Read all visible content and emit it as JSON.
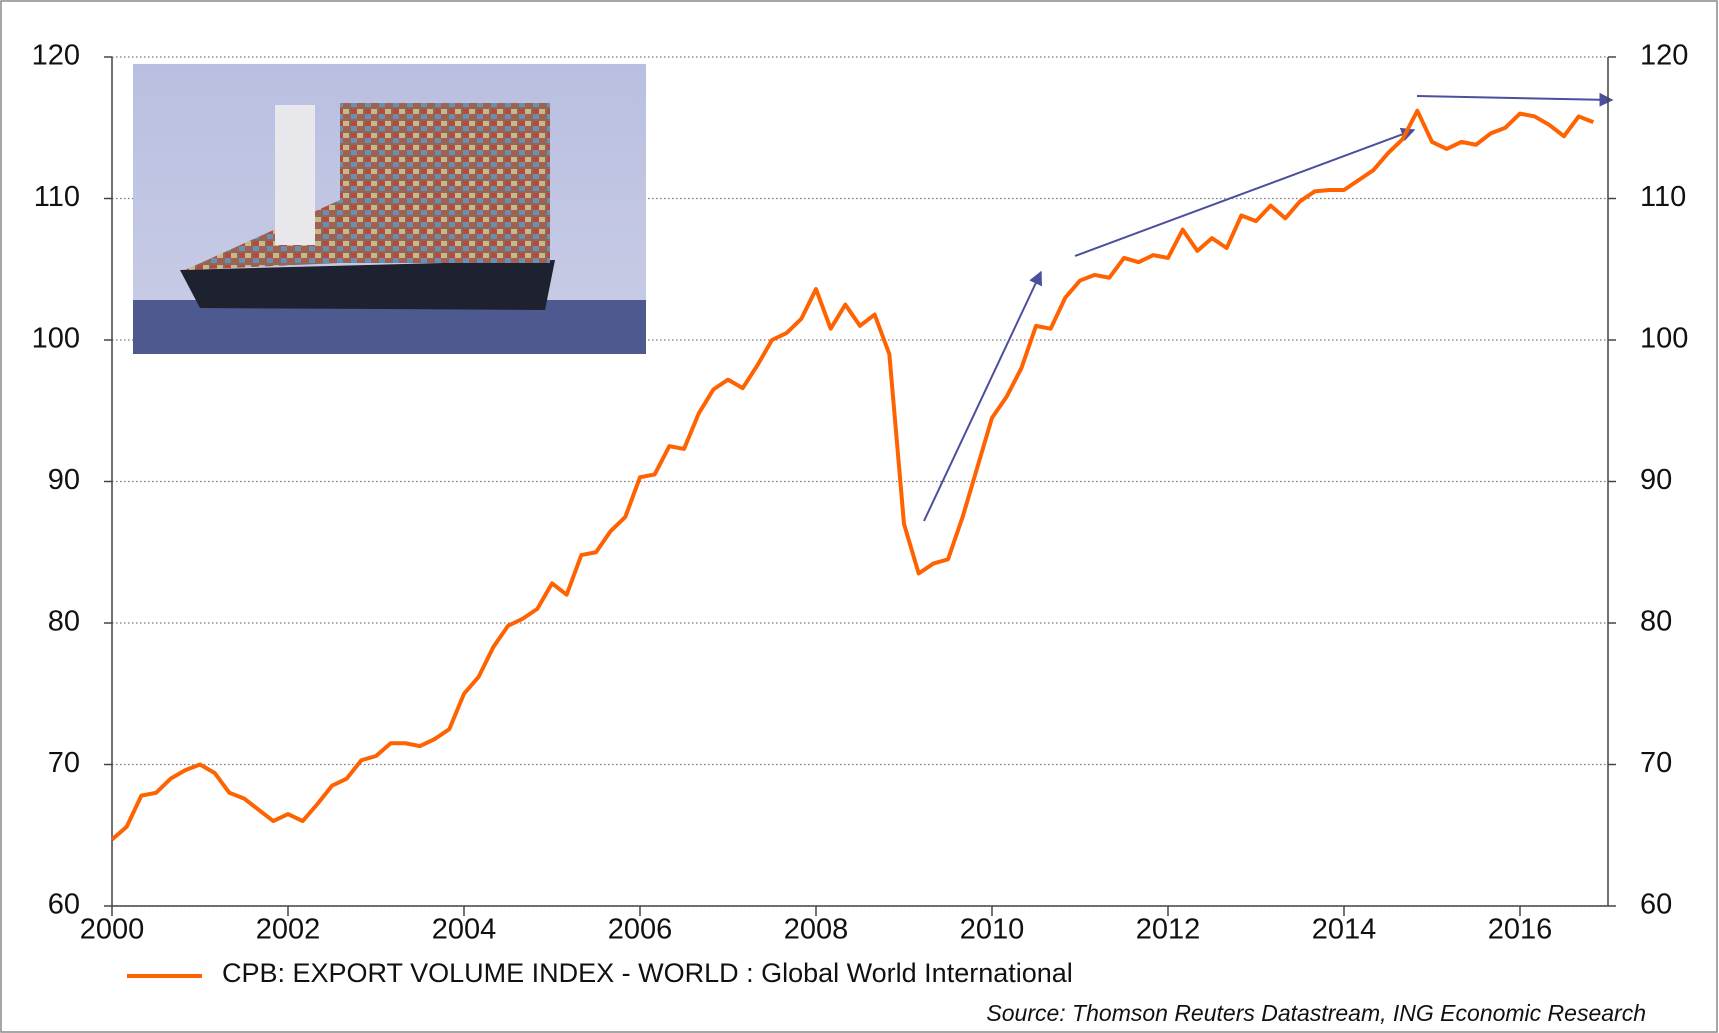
{
  "chart_data": {
    "type": "line",
    "x": [
      2000,
      2000.1667,
      2000.3333,
      2000.5,
      2000.6667,
      2000.8333,
      2001,
      2001.1667,
      2001.3333,
      2001.5,
      2001.6667,
      2001.8333,
      2002,
      2002.1667,
      2002.3333,
      2002.5,
      2002.6667,
      2002.8333,
      2003,
      2003.1667,
      2003.3333,
      2003.5,
      2003.6667,
      2003.8333,
      2004,
      2004.1667,
      2004.3333,
      2004.5,
      2004.6667,
      2004.8333,
      2005,
      2005.1667,
      2005.3333,
      2005.5,
      2005.6667,
      2005.8333,
      2006,
      2006.1667,
      2006.3333,
      2006.5,
      2006.6667,
      2006.8333,
      2007,
      2007.1667,
      2007.3333,
      2007.5,
      2007.6667,
      2007.8333,
      2008,
      2008.1667,
      2008.3333,
      2008.5,
      2008.6667,
      2008.8333,
      2009,
      2009.1667,
      2009.3333,
      2009.5,
      2009.6667,
      2009.8333,
      2010,
      2010.1667,
      2010.3333,
      2010.5,
      2010.6667,
      2010.8333,
      2011,
      2011.1667,
      2011.3333,
      2011.5,
      2011.6667,
      2011.8333,
      2012,
      2012.1667,
      2012.3333,
      2012.5,
      2012.6667,
      2012.8333,
      2013,
      2013.1667,
      2013.3333,
      2013.5,
      2013.6667,
      2013.8333,
      2014,
      2014.1667,
      2014.3333,
      2014.5,
      2014.6667,
      2014.8333,
      2015,
      2015.1667,
      2015.3333,
      2015.5,
      2015.6667,
      2015.8333,
      2016,
      2016.1667,
      2016.3333,
      2016.5,
      2016.6667,
      2016.8333
    ],
    "series": [
      {
        "name": "CPB: EXPORT VOLUME INDEX - WORLD : Global World International",
        "color": "#ff6200",
        "values": [
          64.7,
          65.6,
          67.8,
          68.0,
          69.0,
          69.6,
          70.0,
          69.4,
          68.0,
          67.6,
          66.8,
          66.0,
          66.5,
          66.0,
          67.2,
          68.5,
          69.0,
          70.3,
          70.6,
          71.5,
          71.5,
          71.3,
          71.8,
          72.5,
          75.0,
          76.2,
          78.3,
          79.8,
          80.3,
          81.0,
          82.8,
          82.0,
          84.8,
          85.0,
          86.5,
          87.5,
          90.3,
          90.5,
          92.5,
          92.3,
          94.8,
          96.5,
          97.2,
          96.6,
          98.2,
          100.0,
          100.5,
          101.5,
          103.6,
          100.8,
          102.5,
          101.0,
          101.8,
          99.0,
          87.0,
          83.5,
          84.2,
          84.5,
          87.5,
          91.0,
          94.5,
          96.0,
          98.0,
          101.0,
          100.8,
          103.0,
          104.2,
          104.6,
          104.4,
          105.8,
          105.5,
          106.0,
          105.8,
          107.8,
          106.3,
          107.2,
          106.5,
          108.8,
          108.4,
          109.5,
          108.6,
          109.8,
          110.5,
          110.6,
          110.6,
          111.3,
          112.0,
          113.2,
          114.2,
          116.2,
          114.0,
          113.5,
          114.0,
          113.8,
          114.6,
          115.0,
          116.0,
          115.8,
          115.2,
          114.4,
          115.8,
          115.4
        ]
      }
    ],
    "xlim": [
      2000,
      2017
    ],
    "xticks": [
      2000,
      2002,
      2004,
      2006,
      2008,
      2010,
      2012,
      2014,
      2016
    ],
    "ylim": [
      60,
      120
    ],
    "yticks": [
      60,
      70,
      80,
      90,
      100,
      110,
      120
    ],
    "y2lim": [
      60,
      120
    ],
    "y2ticks": [
      60,
      70,
      80,
      90,
      100,
      110,
      120
    ],
    "grid": true,
    "source": "Source: Thomson Reuters Datastream, ING Economic Research"
  }
}
